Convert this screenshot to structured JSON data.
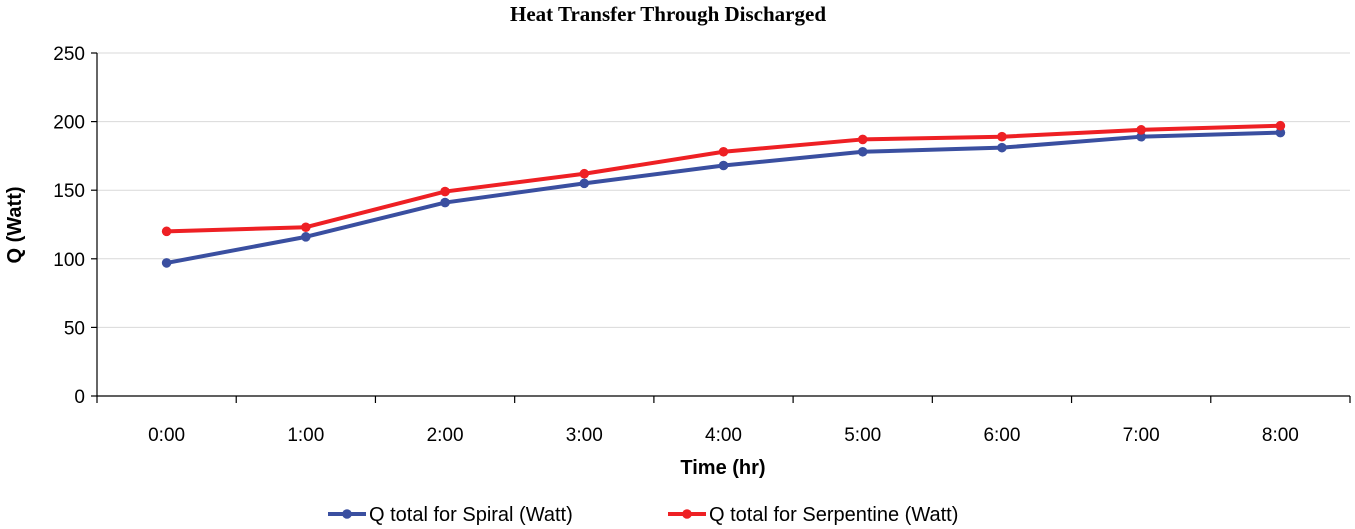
{
  "chart_data": {
    "type": "line",
    "title": "Heat Transfer Through Discharged",
    "xlabel": "Time (hr)",
    "ylabel": "Q (Watt)",
    "ylim": [
      0,
      250
    ],
    "yticks": [
      0,
      50,
      100,
      150,
      200,
      250
    ],
    "grid": true,
    "legend_position": "bottom",
    "categories": [
      "0:00",
      "1:00",
      "2:00",
      "3:00",
      "4:00",
      "5:00",
      "6:00",
      "7:00",
      "8:00"
    ],
    "series": [
      {
        "name": "Q total for Spiral (Watt)",
        "color": "#3a4fa0",
        "values": [
          97,
          116,
          141,
          155,
          168,
          178,
          181,
          189,
          192
        ]
      },
      {
        "name": "Q total for Serpentine (Watt)",
        "color": "#ee2024",
        "values": [
          120,
          123,
          149,
          162,
          178,
          187,
          189,
          194,
          197
        ]
      }
    ]
  }
}
